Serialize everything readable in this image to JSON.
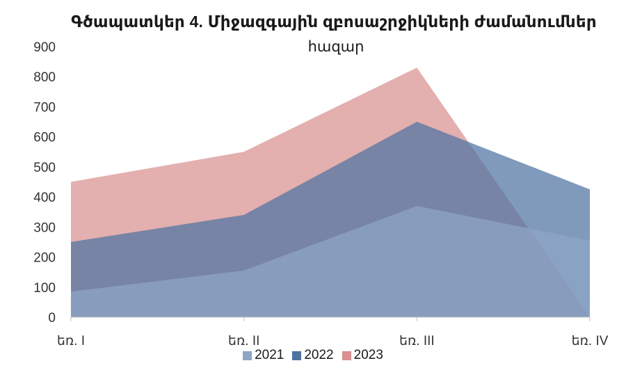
{
  "chart_data": {
    "type": "area",
    "title": "Գծապատկեր 4. Միջազգային զբոսաշրջիկների ժամանումներ",
    "subtitle": "հազար",
    "categories": [
      "եռ. I",
      "եռ. II",
      "եռ. III",
      "եռ. IV"
    ],
    "series": [
      {
        "name": "2021",
        "values": [
          85,
          155,
          370,
          255
        ],
        "color": "#8FA5C6"
      },
      {
        "name": "2022",
        "values": [
          250,
          340,
          650,
          425
        ],
        "color": "#4E73A1"
      },
      {
        "name": "2023",
        "values": [
          450,
          550,
          830,
          0
        ],
        "color": "#D89090"
      }
    ],
    "ylim": [
      0,
      900
    ],
    "yticks": [
      0,
      100,
      200,
      300,
      400,
      500,
      600,
      700,
      800,
      900
    ],
    "legend_position": "bottom"
  }
}
